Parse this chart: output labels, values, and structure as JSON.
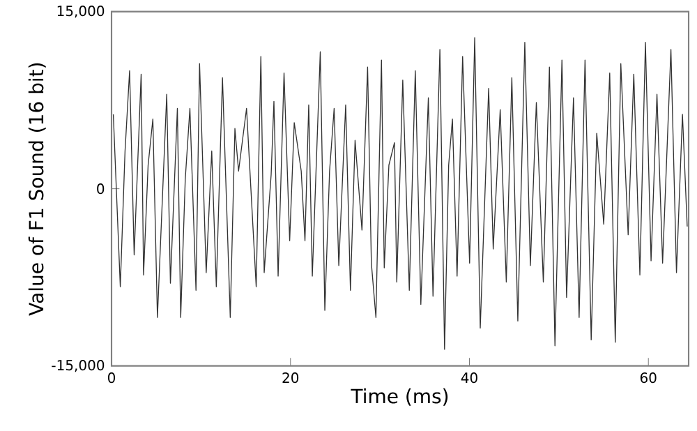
{
  "chart_data": {
    "type": "line",
    "xlabel": "Time (ms)",
    "ylabel": "Value of F1 Sound (16 bit)",
    "xlim": [
      0,
      64.5
    ],
    "xticks": [
      0,
      20,
      40,
      60
    ],
    "ylim": [
      -15000,
      15000
    ],
    "yticks": [
      {
        "value": -15000,
        "label": "-15,000"
      },
      0,
      {
        "value": 15000,
        "label": "15,000"
      }
    ],
    "grid": false,
    "marker": "none",
    "line_style": "solid",
    "x": [
      0.2,
      0.98,
      1.51,
      2.02,
      2.53,
      3.31,
      3.58,
      4.09,
      4.62,
      5.13,
      6.17,
      6.58,
      7.36,
      7.73,
      8.24,
      8.76,
      9.44,
      9.84,
      10.58,
      11.2,
      11.71,
      12.4,
      13.27,
      13.79,
      14.2,
      15.09,
      16.17,
      16.69,
      17.06,
      17.84,
      18.15,
      18.62,
      19.28,
      19.91,
      20.42,
      21.2,
      21.62,
      22.04,
      22.44,
      23.33,
      23.84,
      24.37,
      24.88,
      25.4,
      26.17,
      26.7,
      27.22,
      27.99,
      28.62,
      29.04,
      29.55,
      30.17,
      30.48,
      31.0,
      31.62,
      31.88,
      32.55,
      33.28,
      33.95,
      34.57,
      35.41,
      35.93,
      36.7,
      37.22,
      37.68,
      38.1,
      38.62,
      39.24,
      40.02,
      40.59,
      41.21,
      42.15,
      42.66,
      43.44,
      44.12,
      44.74,
      45.41,
      46.19,
      46.81,
      47.48,
      48.26,
      48.94,
      49.56,
      50.34,
      50.86,
      51.63,
      52.26,
      52.92,
      53.61,
      54.23,
      55.01,
      55.68,
      56.3,
      56.92,
      57.74,
      58.37,
      59.05,
      59.67,
      60.3,
      60.96,
      61.59,
      62.52,
      63.14,
      63.81,
      64.34
    ],
    "series": [
      {
        "color": "#333333",
        "values": [
          6300,
          -8300,
          3200,
          10000,
          -5600,
          9700,
          -7300,
          2000,
          5900,
          -10900,
          8000,
          -8000,
          6800,
          -10900,
          800,
          6800,
          -8600,
          10600,
          -7100,
          3200,
          -8300,
          9400,
          -10900,
          5100,
          1500,
          6800,
          -8300,
          11200,
          -7100,
          1200,
          7400,
          -7400,
          9800,
          -4400,
          5600,
          1500,
          -4400,
          7100,
          -7400,
          11600,
          -10300,
          1500,
          6800,
          -6500,
          7100,
          -8600,
          4100,
          -3500,
          10300,
          -6300,
          -10900,
          10900,
          -6700,
          2000,
          3900,
          -7900,
          9200,
          -8600,
          10000,
          -9800,
          7700,
          -9100,
          11800,
          -13600,
          2000,
          5900,
          -7400,
          11200,
          -6300,
          12800,
          -11800,
          8500,
          -5100,
          6700,
          -7900,
          9400,
          -11200,
          12400,
          -6500,
          7300,
          -7900,
          10300,
          -13300,
          10900,
          -9200,
          7700,
          -10900,
          10900,
          -12800,
          4700,
          -3000,
          9800,
          -13000,
          10600,
          -3900,
          9700,
          -7300,
          12400,
          -6100,
          8000,
          -6300,
          11800,
          -7100,
          6300,
          -3200
        ]
      }
    ]
  }
}
